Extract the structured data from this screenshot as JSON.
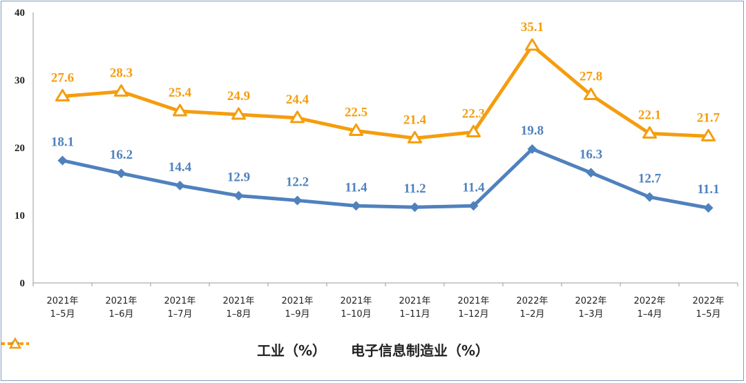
{
  "chart_data": {
    "type": "line",
    "categories": [
      [
        "2021年",
        "1–5月"
      ],
      [
        "2021年",
        "1–6月"
      ],
      [
        "2021年",
        "1–7月"
      ],
      [
        "2021年",
        "1–8月"
      ],
      [
        "2021年",
        "1–9月"
      ],
      [
        "2021年",
        "1–10月"
      ],
      [
        "2021年",
        "1–11月"
      ],
      [
        "2021年",
        "1–12月"
      ],
      [
        "2022年",
        "1–2月"
      ],
      [
        "2022年",
        "1–3月"
      ],
      [
        "2022年",
        "1–4月"
      ],
      [
        "2022年",
        "1–5月"
      ]
    ],
    "series": [
      {
        "name": "工业（%）",
        "color": "#4f81bd",
        "marker": "diamond",
        "values": [
          18.1,
          16.2,
          14.4,
          12.9,
          12.2,
          11.4,
          11.2,
          11.4,
          19.8,
          16.3,
          12.7,
          11.1
        ]
      },
      {
        "name": "电子信息制造业（%）",
        "color": "#f59d0e",
        "marker": "triangle",
        "values": [
          27.6,
          28.3,
          25.4,
          24.9,
          24.4,
          22.5,
          21.4,
          22.3,
          35.1,
          27.8,
          22.1,
          21.7
        ]
      }
    ],
    "ylim": [
      0,
      40
    ],
    "yticks": [
      0,
      10,
      20,
      30,
      40
    ],
    "grid": false,
    "legend": "bottom",
    "title": "",
    "xlabel": "",
    "ylabel": ""
  }
}
